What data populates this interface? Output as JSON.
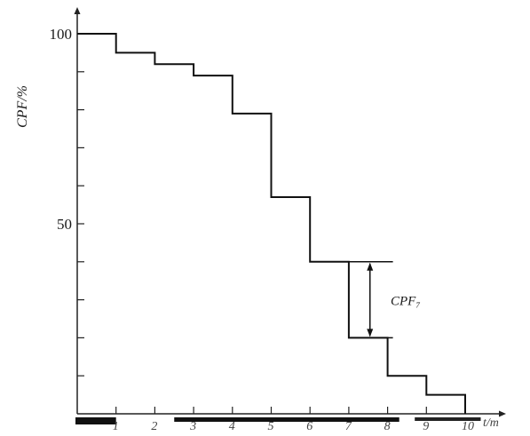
{
  "chart_data": {
    "type": "step",
    "ylabel": "CPF/%",
    "xlabel": "t/m",
    "x_tick_labels": [
      "1",
      "2",
      "3",
      "4",
      "5",
      "6",
      "7",
      "8",
      "9",
      "10"
    ],
    "y_tick_labels": [
      {
        "value": 100,
        "label": "100"
      },
      {
        "value": 50,
        "label": "50"
      }
    ],
    "ylim": [
      0,
      100
    ],
    "xlim": [
      0,
      10
    ],
    "y_minor_ticks": [
      10,
      20,
      30,
      40,
      60,
      70,
      80,
      90
    ],
    "steps": [
      {
        "x0": 0,
        "x1": 1,
        "y": 100
      },
      {
        "x0": 1,
        "x1": 2,
        "y": 95
      },
      {
        "x0": 2,
        "x1": 3,
        "y": 92
      },
      {
        "x0": 3,
        "x1": 4,
        "y": 89
      },
      {
        "x0": 4,
        "x1": 5,
        "y": 79
      },
      {
        "x0": 5,
        "x1": 6,
        "y": 57
      },
      {
        "x0": 6,
        "x1": 7,
        "y": 40
      },
      {
        "x0": 7,
        "x1": 8,
        "y": 20
      },
      {
        "x0": 8,
        "x1": 9,
        "y": 10
      },
      {
        "x0": 9,
        "x1": 10,
        "y": 5
      }
    ],
    "annotation": {
      "label": "CPF₇",
      "x": 7.5,
      "y_top": 40,
      "y_bottom": 20
    },
    "line_color": "#111111"
  }
}
